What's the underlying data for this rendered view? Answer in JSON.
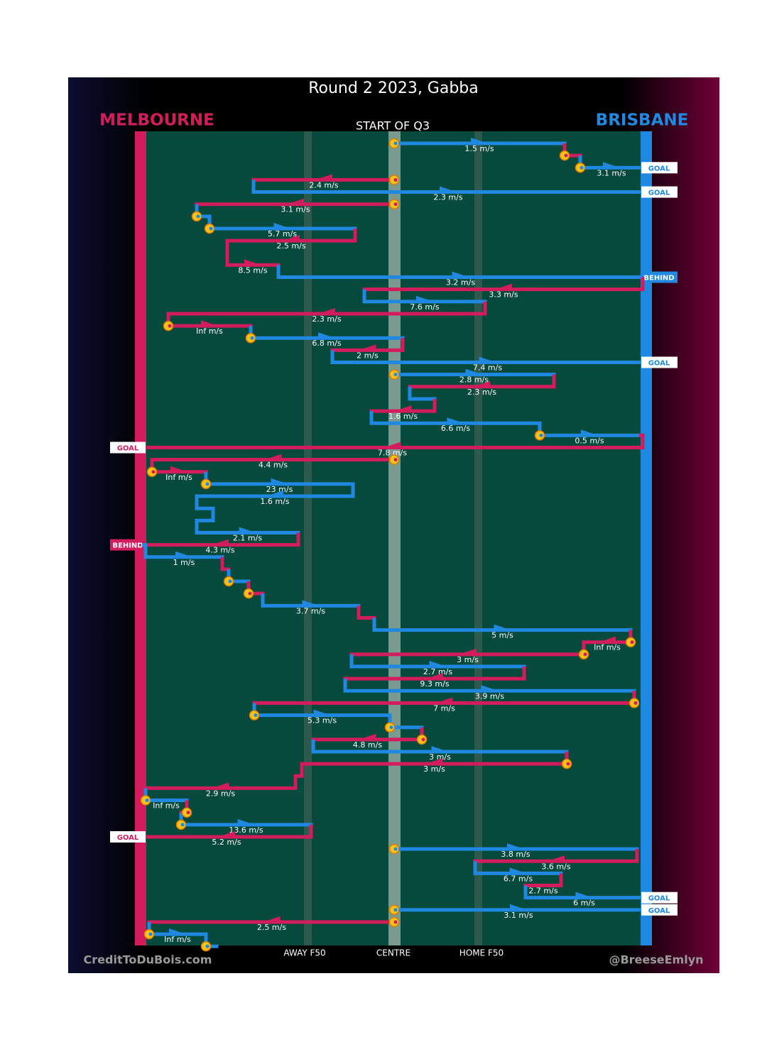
{
  "title": "Round 2 2023, Gabba",
  "left_team": "MELBOURNE",
  "right_team": "BRISBANE",
  "start_label": "START OF Q3",
  "field_labels": [
    "AWAY F50",
    "CENTRE",
    "HOME F50"
  ],
  "credits": [
    "CreditToDuBois.com",
    "@BreeseEmlyn"
  ],
  "chain": [
    "1.5 m/s",
    "3.1 m/s",
    "2.4 m/s",
    "2.3 m/s",
    "3.1 m/s",
    "5.7 m/s",
    "2.5 m/s",
    "8.5 m/s",
    "3.2 m/s",
    "3.3 m/s",
    "7.6 m/s",
    "2.3 m/s",
    "Inf m/s",
    "6.8 m/s",
    "2 m/s",
    "7.4 m/s",
    "2.8 m/s",
    "2.3 m/s",
    "1.6 m/s",
    "6.6 m/s",
    "0.5 m/s",
    "7.8 m/s",
    "4.4 m/s",
    "Inf m/s",
    "23 m/s",
    "1.6 m/s",
    "2.1 m/s",
    "4.3 m/s",
    "1 m/s",
    "3.7 m/s",
    "5 m/s",
    "Inf m/s",
    "3 m/s",
    "2.7 m/s",
    "9.3 m/s",
    "3.9 m/s",
    "7 m/s",
    "5.3 m/s",
    "4.8 m/s",
    "3 m/s",
    "3 m/s",
    "2.9 m/s",
    "Inf m/s",
    "13.6 m/s",
    "5.2 m/s",
    "3.8 m/s",
    "3.6 m/s",
    "6.7 m/s",
    "2.7 m/s",
    "6 m/s",
    "3.1 m/s",
    "2.5 m/s",
    "Inf m/s"
  ],
  "outcomes": [
    "GOAL",
    "GOAL",
    "BEHIND",
    "GOAL",
    "GOAL",
    "BEHIND",
    "GOAL",
    "GOAL",
    "GOAL"
  ]
}
